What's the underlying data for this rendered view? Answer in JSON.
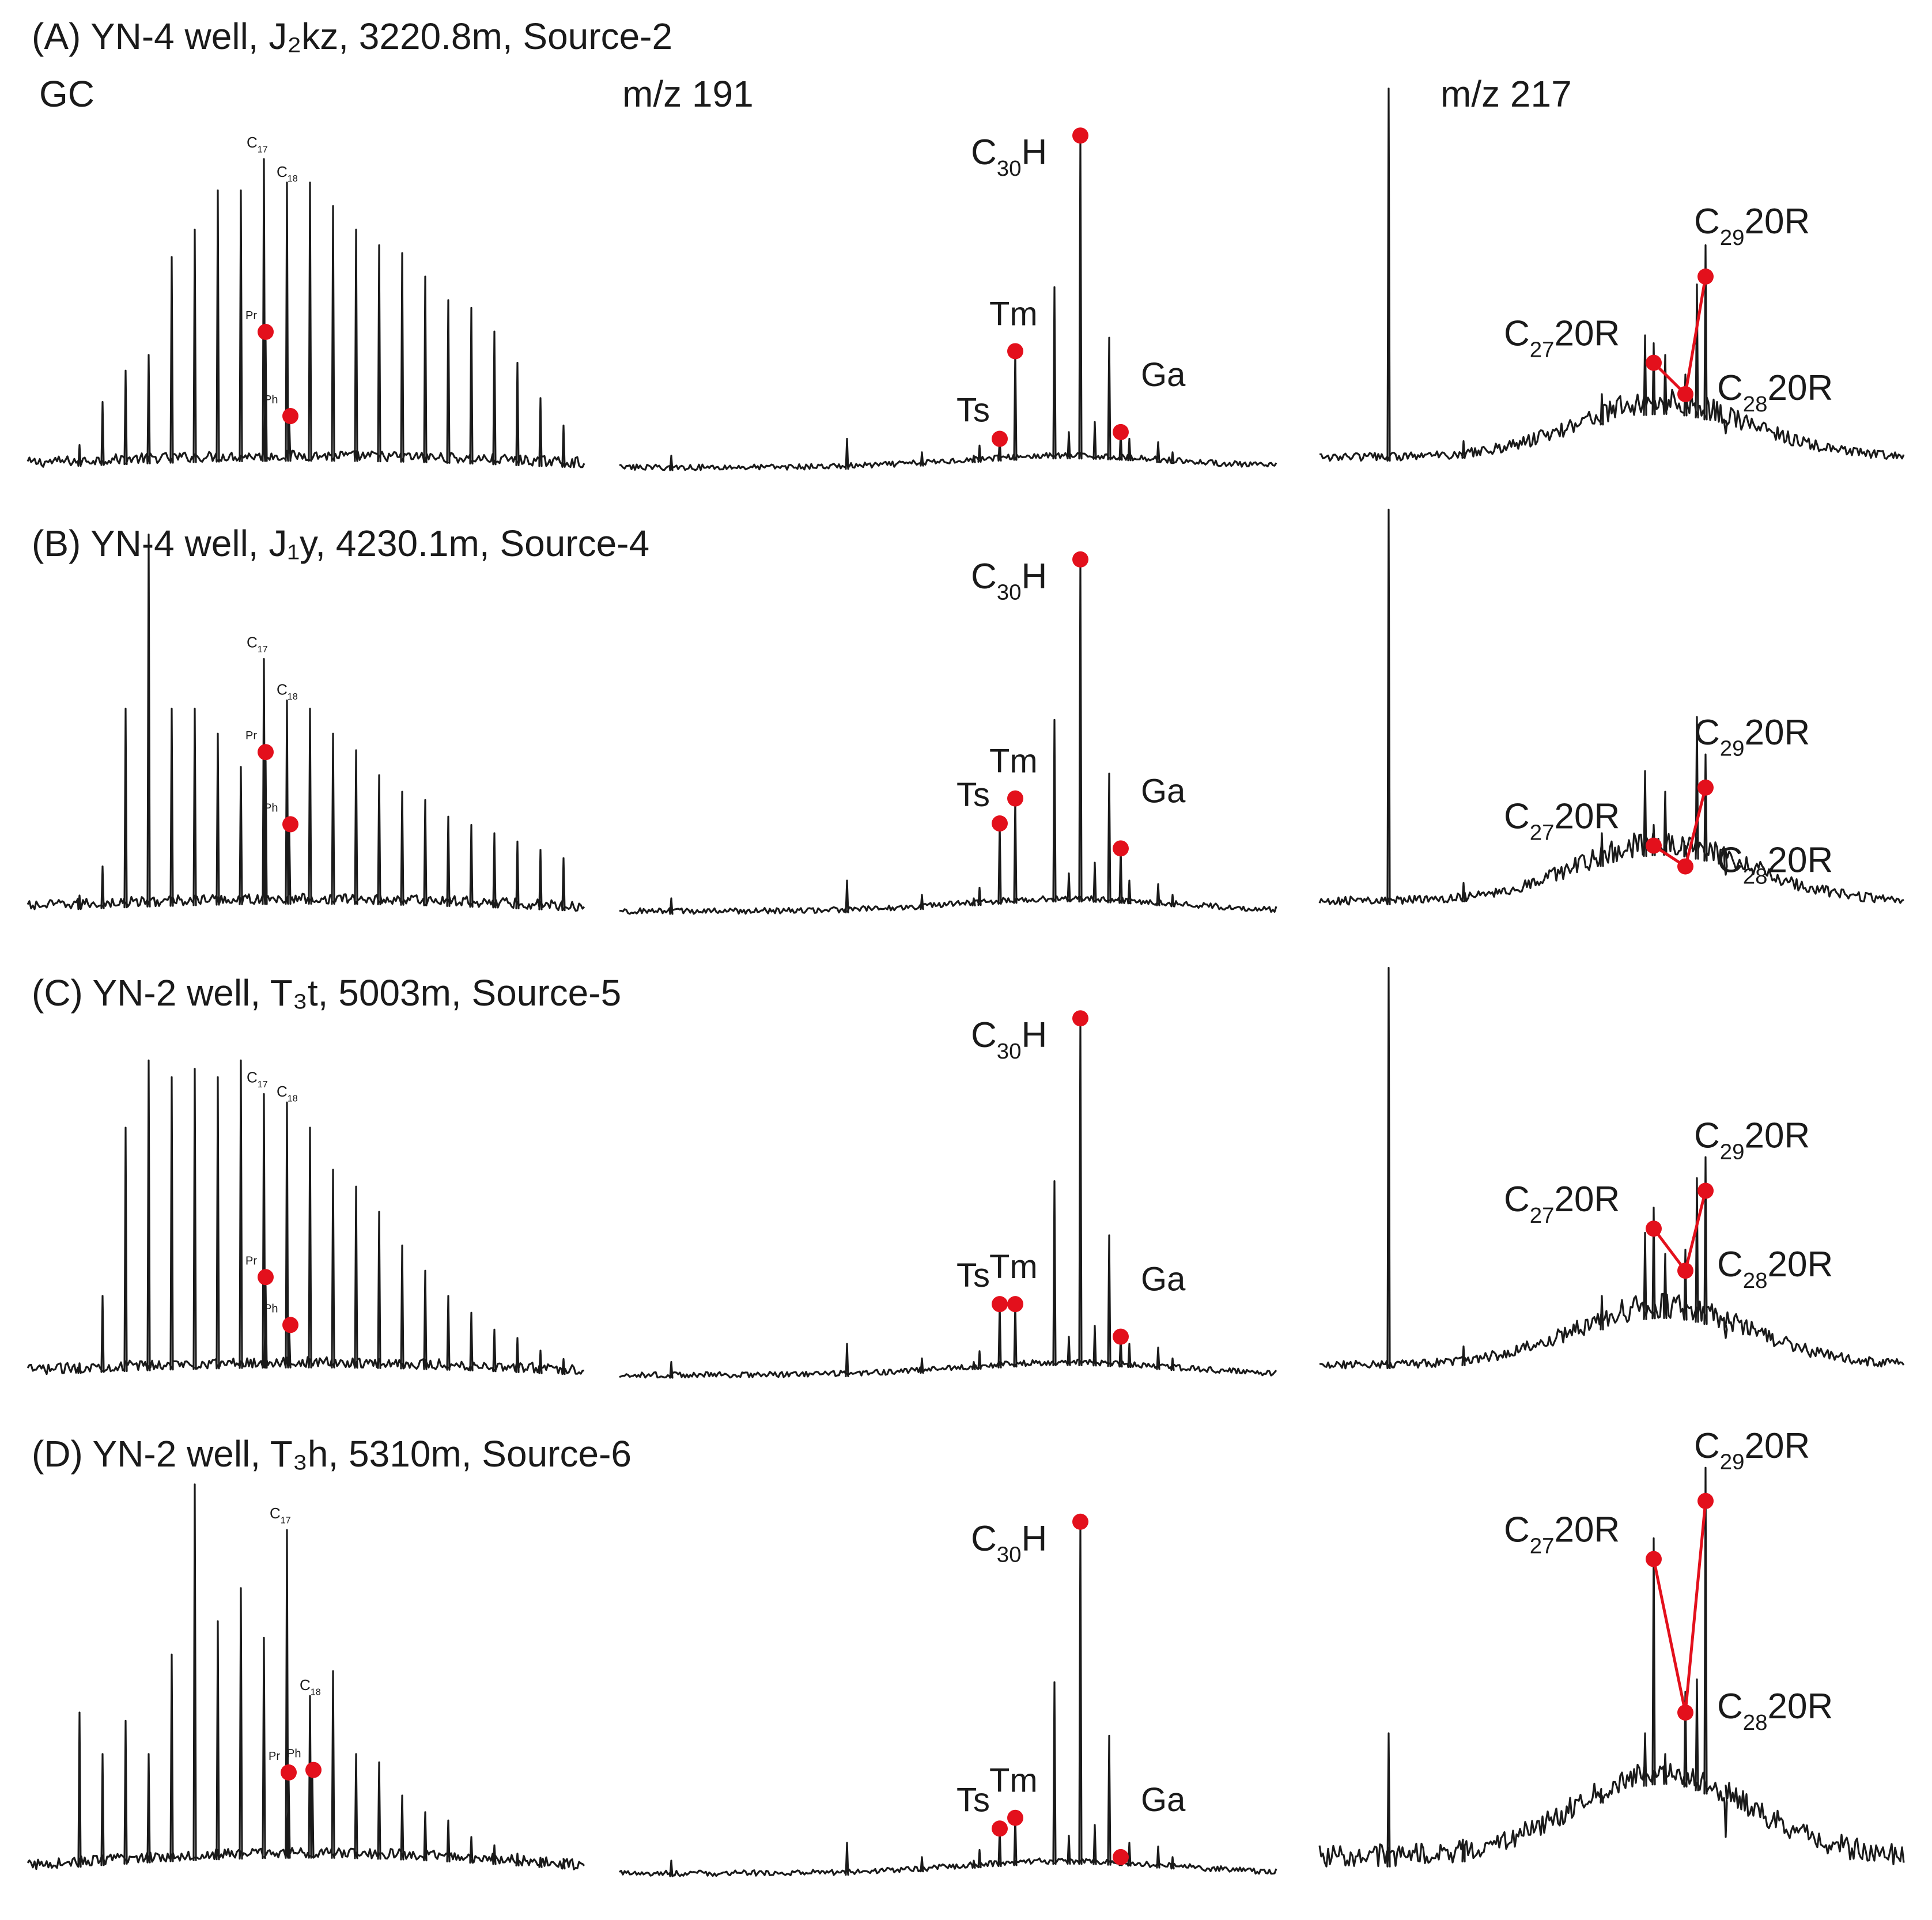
{
  "colors": {
    "trace": "#1a1a1a",
    "marker": "#e3101c",
    "background": "#ffffff"
  },
  "chart_data": {
    "type": "line",
    "column_labels": {
      "gc": "GC",
      "m191": "m/z 191",
      "m217": "m/z 217"
    },
    "peak_labels": {
      "C30H": [
        "C",
        "30",
        "H"
      ],
      "Tm": "Tm",
      "Ts": "Ts",
      "Ga": "Ga",
      "C27": [
        "C",
        "27",
        "20R"
      ],
      "C28": [
        "C",
        "28",
        "20R"
      ],
      "C29": [
        "C",
        "29",
        "20R"
      ],
      "C17": [
        "C",
        "17"
      ],
      "C18": [
        "C",
        "18"
      ],
      "Pr": "Pr",
      "Ph": "Ph"
    },
    "panels": [
      {
        "id": "A",
        "title": "(A) YN-4 well,   J₂kz,   3220.8m,   Source-2",
        "gc": {
          "baseline": 0.03,
          "peaks": [
            0.07,
            0.18,
            0.26,
            0.3,
            0.55,
            0.62,
            0.72,
            0.72,
            0.8,
            0.74,
            0.74,
            0.68,
            0.62,
            0.58,
            0.56,
            0.5,
            0.44,
            0.42,
            0.36,
            0.28,
            0.19,
            0.12,
            0.08,
            0.05
          ],
          "pr": 0.3,
          "ph": 0.1,
          "c17_index": 8,
          "c18_index": 9
        },
        "m191": {
          "ts": 0.06,
          "tm": 0.36,
          "c30h": 1.0,
          "ga": 0.08
        },
        "m217": {
          "c27": 0.28,
          "c28": 0.2,
          "c29": 0.5
        }
      },
      {
        "id": "B",
        "title": "(B) YN-4 well, J₁y, 4230.1m, Source-4",
        "gc": {
          "baseline": 0.03,
          "peaks": [
            0.05,
            0.12,
            0.5,
            0.92,
            0.5,
            0.5,
            0.44,
            0.36,
            0.62,
            0.52,
            0.5,
            0.44,
            0.4,
            0.34,
            0.3,
            0.28,
            0.24,
            0.22,
            0.2,
            0.18,
            0.16,
            0.14,
            0.1,
            0.07
          ],
          "pr": 0.34,
          "ph": 0.18,
          "c17_index": 8,
          "c18_index": 9
        },
        "m191": {
          "ts": 0.22,
          "tm": 0.33,
          "c30h": 1.0,
          "ga": 0.15
        },
        "m217": {
          "c27": 0.17,
          "c28": 0.12,
          "c29": 0.31
        }
      },
      {
        "id": "C",
        "title": "(C) YN-2 well, T₃t, 5003m, Source-5",
        "gc": {
          "baseline": 0.03,
          "peaks": [
            0.04,
            0.2,
            0.6,
            0.76,
            0.72,
            0.74,
            0.72,
            0.76,
            0.68,
            0.66,
            0.6,
            0.5,
            0.46,
            0.4,
            0.32,
            0.26,
            0.2,
            0.16,
            0.12,
            0.1,
            0.07,
            0.05,
            0.04,
            0.03
          ],
          "pr": 0.19,
          "ph": 0.09,
          "c17_index": 8,
          "c18_index": 9
        },
        "m191": {
          "ts": 0.17,
          "tm": 0.21,
          "c30h": 1.0,
          "ga": 0.08
        },
        "m217": {
          "c27": 0.36,
          "c28": 0.26,
          "c29": 0.45
        }
      },
      {
        "id": "D",
        "title": "(D) YN-2 well, T₃h, 5310m, Source-6",
        "gc": {
          "baseline": 0.05,
          "peaks": [
            0.4,
            0.3,
            0.38,
            0.3,
            0.54,
            0.95,
            0.62,
            0.7,
            0.58,
            0.84,
            0.44,
            0.5,
            0.3,
            0.28,
            0.2,
            0.16,
            0.14,
            0.1,
            0.08,
            0.06,
            0.05,
            0.04,
            0.04,
            0.03
          ],
          "pr": 0.2,
          "ph": 0.22,
          "c17_index": 9,
          "c18_index": 10
        },
        "m191": {
          "ts": 0.1,
          "tm": 0.17,
          "c30h": 1.0,
          "ga": 0.02
        },
        "m217": {
          "c27": 0.77,
          "c28": 0.4,
          "c29": 0.91
        }
      }
    ]
  }
}
